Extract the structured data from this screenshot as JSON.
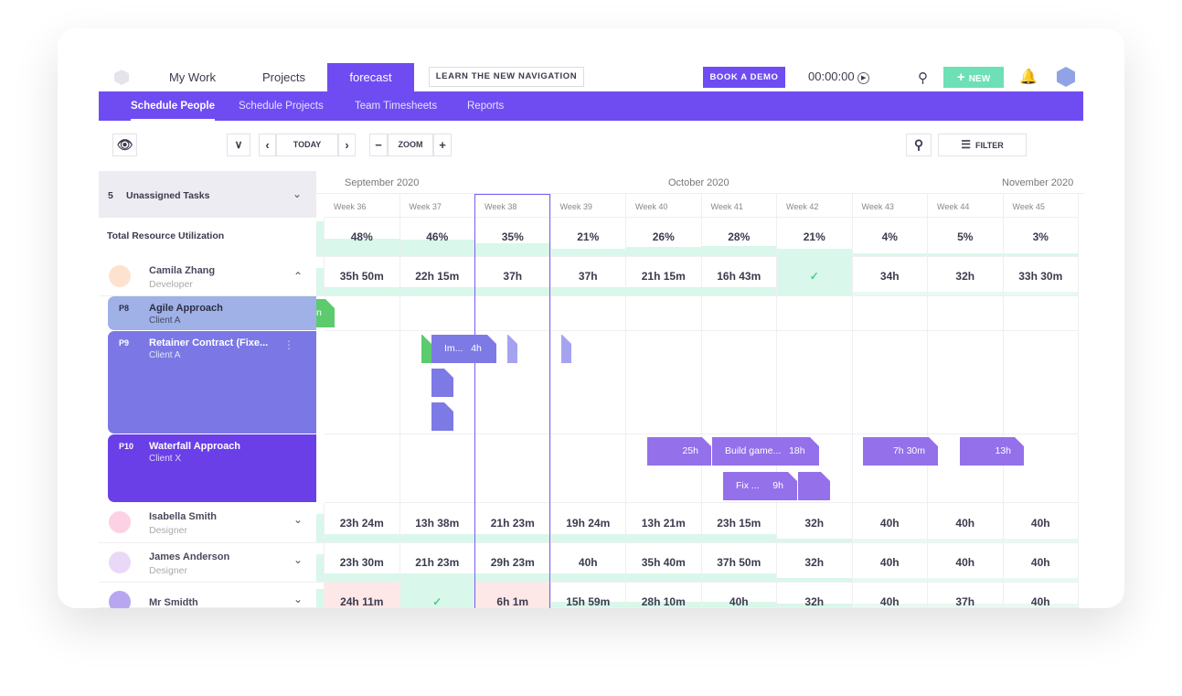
{
  "nav": {
    "tabs": [
      "My Work",
      "Projects",
      "forecast"
    ],
    "learn": "LEARN THE NEW NAVIGATION",
    "demo": "BOOK A DEMO",
    "timer": "00:00:00",
    "new": "NEW"
  },
  "subnav": [
    "Schedule People",
    "Schedule Projects",
    "Team Timesheets",
    "Reports"
  ],
  "toolbar": {
    "today": "TODAY",
    "zoom": "ZOOM",
    "filter": "FILTER"
  },
  "unassigned": {
    "count": "5",
    "label": "Unassigned Tasks"
  },
  "months": [
    "September 2020",
    "October 2020",
    "November 2020"
  ],
  "weeks": [
    "Week 36",
    "Week 37",
    "Week 38",
    "Week 39",
    "Week 40",
    "Week 41",
    "Week 42",
    "Week 43",
    "Week 44",
    "Week 45"
  ],
  "utilization": {
    "label": "Total Resource Utilization",
    "values": [
      "48%",
      "46%",
      "35%",
      "21%",
      "26%",
      "28%",
      "21%",
      "4%",
      "5%",
      "3%"
    ],
    "fractions": [
      0.48,
      0.46,
      0.35,
      0.21,
      0.26,
      0.28,
      0.21,
      0.04,
      0.05,
      0.03
    ]
  },
  "people": [
    {
      "name": "Camila Zhang",
      "role": "Developer",
      "hours": [
        "35h 50m",
        "22h 15m",
        "37h",
        "37h",
        "21h 15m",
        "16h 43m",
        "✓",
        "34h",
        "32h",
        "33h 30m"
      ]
    },
    {
      "name": "Isabella Smith",
      "role": "Designer",
      "hours": [
        "23h 24m",
        "13h 38m",
        "21h 23m",
        "19h 24m",
        "13h 21m",
        "23h 15m",
        "32h",
        "40h",
        "40h",
        "40h"
      ]
    },
    {
      "name": "James Anderson",
      "role": "Designer",
      "hours": [
        "23h 30m",
        "21h 23m",
        "29h 23m",
        "40h",
        "35h 40m",
        "37h 50m",
        "32h",
        "40h",
        "40h",
        "40h"
      ]
    },
    {
      "name": "Mr Smidth",
      "role": "",
      "hours": [
        "24h 11m",
        "✓",
        "6h 1m",
        "15h 59m",
        "28h 10m",
        "40h",
        "32h",
        "40h",
        "37h",
        "40h"
      ]
    }
  ],
  "projects": [
    {
      "id": "P8",
      "name": "Agile Approach",
      "client": "Client A",
      "color": "#9fb1e6"
    },
    {
      "id": "P9",
      "name": "Retainer Contract (Fixe...",
      "client": "Client A",
      "color": "#7b78e6"
    },
    {
      "id": "P10",
      "name": "Waterfall Approach",
      "client": "Client X",
      "color": "#6a3fe8"
    }
  ],
  "tasks": {
    "t1": "Im...",
    "t1h": "4h",
    "t2h": "25h",
    "t3": "Build game...",
    "t3h": "18h",
    "t4": "Fix ...",
    "t4h": "9h",
    "t5h": "7h 30m",
    "t6h": "13h",
    "agile_stub": "n"
  },
  "colors": {
    "accent": "#6e4cf2",
    "green": "#6ee0b5",
    "over": "#fde7e7"
  }
}
